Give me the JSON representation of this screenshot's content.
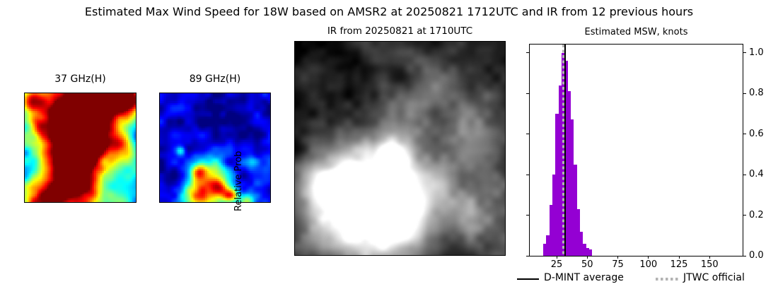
{
  "figure_title": "Estimated Max Wind Speed for 18W based on AMSR2 at 20250821 1712UTC and IR from 12 previous hours",
  "panels": {
    "amsr2_37ghz": {
      "title": "37 GHz(H)",
      "description": "AMSR2 37 GHz horizontally-polarized microwave image, jet colormap"
    },
    "amsr2_89ghz": {
      "title": "89 GHz(H)",
      "description": "AMSR2 89 GHz horizontally-polarized microwave image, jet colormap"
    },
    "ir": {
      "title": "IR from 20250821 at 1710UTC",
      "description": "Grayscale infrared satellite image with bright cold cloud mass lower center"
    }
  },
  "chart_data": {
    "type": "bar",
    "title": "Estimated MSW, knots",
    "xlabel": "",
    "ylabel": "Relative Prob",
    "bar_color": "#9400d3",
    "bin_edges": [
      14,
      16.5,
      19,
      21.5,
      24,
      26.5,
      29,
      31.5,
      34,
      36.5,
      39,
      41.5,
      44,
      46.5,
      49,
      51.5,
      54
    ],
    "values": [
      0.06,
      0.1,
      0.25,
      0.4,
      0.7,
      0.84,
      1.0,
      0.96,
      0.81,
      0.67,
      0.45,
      0.23,
      0.12,
      0.06,
      0.04,
      0.03
    ],
    "x_ticks": [
      25,
      50,
      75,
      100,
      125,
      150
    ],
    "y_ticks": [
      0.0,
      0.2,
      0.4,
      0.6,
      0.8,
      1.0
    ],
    "xlim": [
      3,
      177
    ],
    "ylim": [
      0,
      1.04
    ],
    "grid": false,
    "legend_position": "below-right",
    "vlines": [
      {
        "label": "D-MINT average",
        "x": 31.9,
        "color": "#000000",
        "style": "solid"
      },
      {
        "label": "JTWC official",
        "x": 30.2,
        "color": "#b3b3b3",
        "style": "dotted"
      }
    ]
  }
}
